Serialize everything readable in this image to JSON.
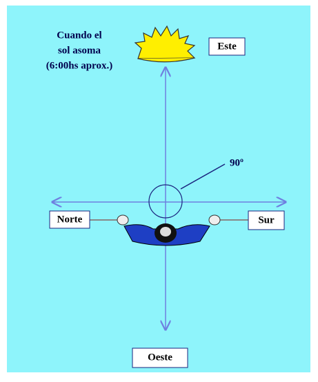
{
  "annotation": {
    "lines": [
      "Cuando el",
      "sol asoma",
      "(6:00hs aprox.)"
    ]
  },
  "labels": {
    "east": "Este",
    "angle": "90º",
    "north": "Norte",
    "south": "Sur",
    "west": "Oeste"
  }
}
